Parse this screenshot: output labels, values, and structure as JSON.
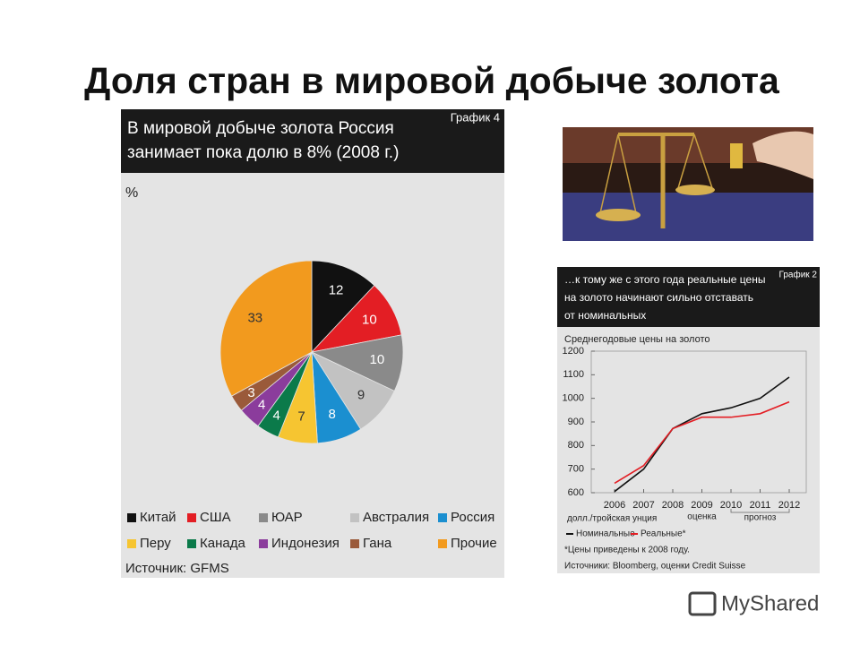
{
  "title": "Доля стран в мировой добыче золота",
  "watermark": "MyShared",
  "chart_data": [
    {
      "type": "pie",
      "label": "График 4",
      "title_lines": [
        "В мировой добыче золота Россия",
        "занимает пока долю в 8% (2008 г.)"
      ],
      "unit": "%",
      "categories": [
        "Китай",
        "США",
        "ЮАР",
        "Австралия",
        "Россия",
        "Перу",
        "Канада",
        "Индонезия",
        "Гана",
        "Прочие"
      ],
      "values": [
        12,
        10,
        10,
        9,
        8,
        7,
        4,
        4,
        3,
        33
      ],
      "colors": [
        "#111111",
        "#e31e24",
        "#8a8a8a",
        "#c2c2c2",
        "#1b8fd0",
        "#f6c531",
        "#0b7a4a",
        "#8b3c9c",
        "#9a5a3a",
        "#f29a1e"
      ],
      "source": "Источник: GFMS"
    },
    {
      "type": "line",
      "label": "График 2",
      "title_lines": [
        "…к тому же с этого года реальные цены",
        "на золото начинают сильно отставать",
        "от номинальных"
      ],
      "subtitle": "Среднегодовые цены на золото",
      "categories": [
        "2006",
        "2007",
        "2008",
        "2009",
        "2010",
        "2011",
        "2012"
      ],
      "series": [
        {
          "name": "Номинальные",
          "color": "#111111",
          "values": [
            605,
            700,
            872,
            935,
            960,
            1000,
            1090
          ]
        },
        {
          "name": "Реальные*",
          "color": "#e31e24",
          "values": [
            640,
            715,
            872,
            920,
            920,
            935,
            985
          ]
        }
      ],
      "ylim": [
        600,
        1200
      ],
      "yticks": [
        600,
        700,
        800,
        900,
        1000,
        1100,
        1200
      ],
      "unit_label": "долл./тройская унция",
      "annotations": [
        "оценка",
        "прогноз"
      ],
      "footnote": "*Цены приведены к 2008 году.",
      "source": "Источники: Bloomberg, оценки Credit Suisse"
    }
  ]
}
